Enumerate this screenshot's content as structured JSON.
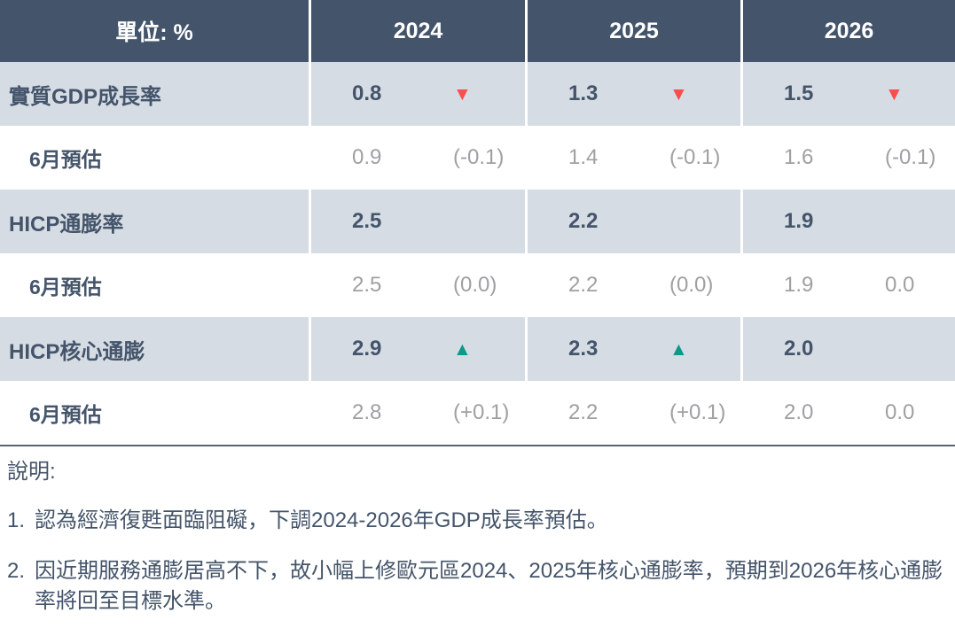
{
  "colors": {
    "header_bg": "#44546A",
    "band_bg": "#D6DCE4",
    "text_dark": "#44546A",
    "text_muted": "#A0A0A3",
    "down_red": "#FA4D4D",
    "up_teal": "#0E9888"
  },
  "chart_data": {
    "type": "table",
    "unit_label": "單位: %",
    "columns": [
      "2024",
      "2025",
      "2026"
    ],
    "rows": [
      {
        "label": "實質GDP成長率",
        "kind": "main",
        "cells": [
          {
            "value": "0.8",
            "indicator": "▼",
            "dir": "down",
            "change": ""
          },
          {
            "value": "1.3",
            "indicator": "▼",
            "dir": "down",
            "change": ""
          },
          {
            "value": "1.5",
            "indicator": "▼",
            "dir": "down",
            "change": ""
          }
        ]
      },
      {
        "label": "6月預估",
        "kind": "sub",
        "cells": [
          {
            "value": "0.9",
            "indicator": "",
            "dir": "none",
            "change": "(-0.1)"
          },
          {
            "value": "1.4",
            "indicator": "",
            "dir": "none",
            "change": "(-0.1)"
          },
          {
            "value": "1.6",
            "indicator": "",
            "dir": "none",
            "change": "(-0.1)"
          }
        ]
      },
      {
        "label": "HICP通膨率",
        "kind": "main",
        "cells": [
          {
            "value": "2.5",
            "indicator": "",
            "dir": "none",
            "change": ""
          },
          {
            "value": "2.2",
            "indicator": "",
            "dir": "none",
            "change": ""
          },
          {
            "value": "1.9",
            "indicator": "",
            "dir": "none",
            "change": ""
          }
        ]
      },
      {
        "label": "6月預估",
        "kind": "sub",
        "cells": [
          {
            "value": "2.5",
            "indicator": "",
            "dir": "none",
            "change": "(0.0)"
          },
          {
            "value": "2.2",
            "indicator": "",
            "dir": "none",
            "change": "(0.0)"
          },
          {
            "value": "1.9",
            "indicator": "",
            "dir": "none",
            "change": "0.0"
          }
        ]
      },
      {
        "label": "HICP核心通膨",
        "kind": "main",
        "cells": [
          {
            "value": "2.9",
            "indicator": "▲",
            "dir": "up",
            "change": ""
          },
          {
            "value": "2.3",
            "indicator": "▲",
            "dir": "up",
            "change": ""
          },
          {
            "value": "2.0",
            "indicator": "",
            "dir": "none",
            "change": ""
          }
        ]
      },
      {
        "label": "6月預估",
        "kind": "sub",
        "cells": [
          {
            "value": "2.8",
            "indicator": "",
            "dir": "none",
            "change": "(+0.1)"
          },
          {
            "value": "2.2",
            "indicator": "",
            "dir": "none",
            "change": "(+0.1)"
          },
          {
            "value": "2.0",
            "indicator": "",
            "dir": "none",
            "change": "0.0"
          }
        ]
      }
    ]
  },
  "notes": {
    "title": "說明:",
    "items": [
      {
        "num": "1.",
        "text": "認為經濟復甦面臨阻礙，下調2024-2026年GDP成長率預估。"
      },
      {
        "num": "2.",
        "text": "因近期服務通膨居高不下，故小幅上修歐元區2024、2025年核心通膨率，預期到2026年核心通膨率將回至目標水準。"
      }
    ]
  }
}
